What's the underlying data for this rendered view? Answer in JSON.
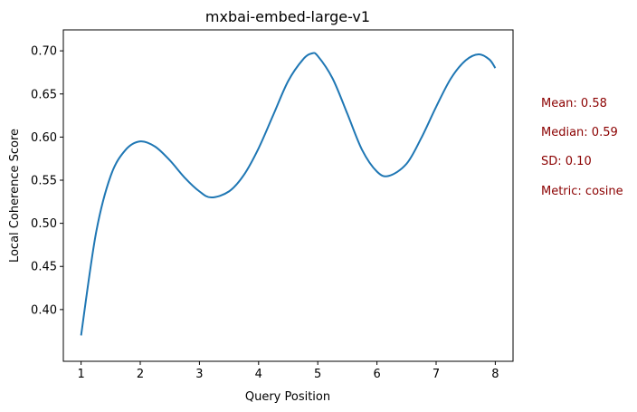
{
  "chart_data": {
    "type": "line",
    "title": "mxbai-embed-large-v1",
    "xlabel": "Query Position",
    "ylabel": "Local Coherence Score",
    "xlim": [
      0.7,
      8.3
    ],
    "ylim": [
      0.34,
      0.7243
    ],
    "x_ticks": [
      1,
      2,
      3,
      4,
      5,
      6,
      7,
      8
    ],
    "x_tick_labels": [
      "1",
      "2",
      "3",
      "4",
      "5",
      "6",
      "7",
      "8"
    ],
    "y_ticks": [
      0.4,
      0.45,
      0.5,
      0.55,
      0.6,
      0.65,
      0.7
    ],
    "y_tick_labels": [
      "0.40",
      "0.45",
      "0.50",
      "0.55",
      "0.60",
      "0.65",
      "0.70"
    ],
    "grid": false,
    "series": [
      {
        "color": "#1f77b4",
        "x": [
          1.0,
          1.25,
          1.5,
          1.75,
          2.0,
          2.25,
          2.5,
          2.75,
          3.0,
          3.2,
          3.5,
          3.75,
          4.0,
          4.25,
          4.5,
          4.75,
          4.9,
          5.0,
          5.25,
          5.5,
          5.75,
          6.0,
          6.2,
          6.5,
          6.75,
          7.0,
          7.25,
          7.5,
          7.72,
          7.9,
          8.0
        ],
        "y": [
          0.37,
          0.488,
          0.555,
          0.585,
          0.595,
          0.589,
          0.573,
          0.553,
          0.537,
          0.53,
          0.537,
          0.556,
          0.587,
          0.626,
          0.665,
          0.69,
          0.697,
          0.694,
          0.668,
          0.627,
          0.585,
          0.56,
          0.555,
          0.569,
          0.599,
          0.635,
          0.668,
          0.689,
          0.696,
          0.69,
          0.68
        ]
      }
    ]
  },
  "stats": {
    "color": "#8b0000",
    "mean": "Mean: 0.58",
    "median": "Median: 0.59",
    "sd": "SD: 0.10",
    "metric": "Metric: cosine"
  }
}
